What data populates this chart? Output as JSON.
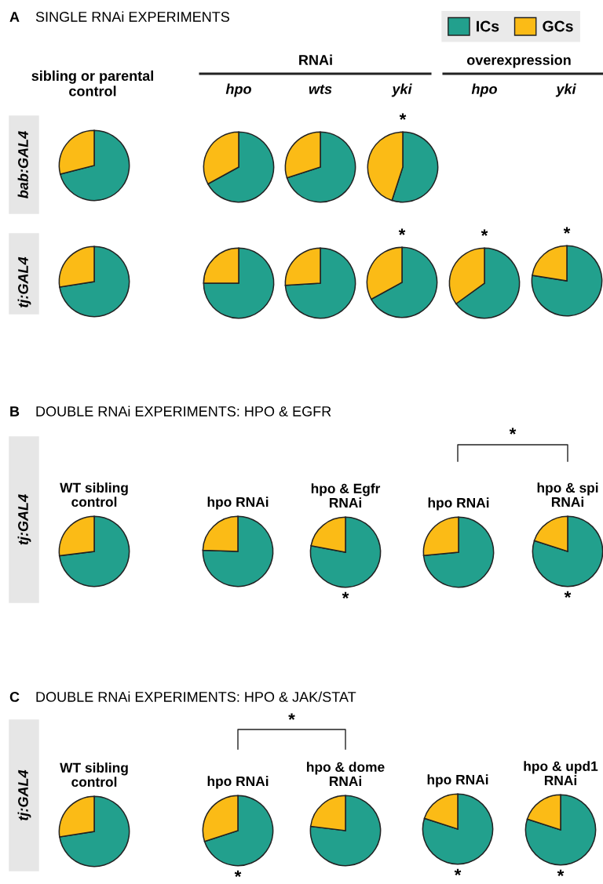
{
  "chart_data": [
    {
      "type": "other",
      "annotations": [
        "A",
        "SINGLE RNAi EXPERIMENTS"
      ]
    },
    {
      "type": "other",
      "annotations": [
        "RNAi",
        "overexpression"
      ]
    },
    {
      "type": "other",
      "annotations": [
        "sibling or parental\ncontrol"
      ]
    },
    {
      "type": "other",
      "annotations": [
        "hpo",
        "wts",
        "yki",
        "hpo",
        "yki"
      ]
    },
    {
      "type": "other",
      "annotations": [
        "bab:GAL4"
      ]
    },
    {
      "type": "pie",
      "categories": [
        "ICs",
        "GCs"
      ],
      "values": [
        71,
        29
      ],
      "colors": [
        "#22a08d",
        "#fbbb16"
      ],
      "legend": "top right"
    },
    {
      "type": "pie",
      "values": [
        67,
        33
      ],
      "colors": [
        "#22a08d",
        "#fbbb16"
      ]
    },
    {
      "type": "pie",
      "values": [
        70,
        30
      ],
      "colors": [
        "#22a08d",
        "#fbbb16"
      ]
    },
    {
      "type": "pie",
      "values": [
        55,
        45
      ],
      "colors": [
        "#22a08d",
        "#fbbb16"
      ],
      "annotations": [
        "*"
      ]
    },
    {
      "type": "other",
      "annotations": [
        "tj:GAL4"
      ]
    },
    {
      "type": "pie",
      "values": [
        72.5,
        27.5
      ],
      "colors": [
        "#22a08d",
        "#fbbb16"
      ]
    },
    {
      "type": "pie",
      "values": [
        75,
        25
      ],
      "colors": [
        "#22a08d",
        "#fbbb16"
      ]
    },
    {
      "type": "pie",
      "values": [
        74,
        26
      ],
      "colors": [
        "#22a08d",
        "#fbbb16"
      ]
    },
    {
      "type": "pie",
      "values": [
        67,
        33
      ],
      "colors": [
        "#22a08d",
        "#fbbb16"
      ],
      "annotations": [
        "*"
      ]
    },
    {
      "type": "pie",
      "values": [
        65,
        35
      ],
      "colors": [
        "#22a08d",
        "#fbbb16"
      ],
      "annotations": [
        "*"
      ]
    },
    {
      "type": "pie",
      "values": [
        77.5,
        22.5
      ],
      "colors": [
        "#22a08d",
        "#fbbb16"
      ],
      "annotations": [
        "*"
      ]
    },
    {
      "type": "other",
      "annotations": [
        "B",
        "DOUBLE RNAi EXPERIMENTS: HPO & EGFR"
      ]
    },
    {
      "type": "other",
      "annotations": [
        "tj:GAL4"
      ]
    },
    {
      "type": "other",
      "annotations": [
        "*"
      ]
    },
    {
      "type": "pie",
      "title": "WT sibling\ncontrol",
      "values": [
        73,
        27
      ],
      "colors": [
        "#22a08d",
        "#fbbb16"
      ]
    },
    {
      "type": "pie",
      "title": "hpo RNAi",
      "values": [
        75.5,
        24.5
      ],
      "colors": [
        "#22a08d",
        "#fbbb16"
      ]
    },
    {
      "type": "pie",
      "title": "hpo & Egfr\nRNAi",
      "values": [
        78,
        22
      ],
      "colors": [
        "#22a08d",
        "#fbbb16"
      ],
      "annotations": [
        "*"
      ]
    },
    {
      "type": "pie",
      "title": "hpo RNAi",
      "values": [
        73.5,
        26.5
      ],
      "colors": [
        "#22a08d",
        "#fbbb16"
      ]
    },
    {
      "type": "pie",
      "title": "hpo & spi\nRNAi",
      "values": [
        80,
        20
      ],
      "colors": [
        "#22a08d",
        "#fbbb16"
      ],
      "annotations": [
        "*"
      ]
    },
    {
      "type": "other",
      "annotations": [
        "C",
        "DOUBLE RNAi EXPERIMENTS: HPO & JAK/STAT"
      ]
    },
    {
      "type": "other",
      "annotations": [
        "tj:GAL4"
      ]
    },
    {
      "type": "other",
      "annotations": [
        "*"
      ]
    },
    {
      "type": "pie",
      "title": "WT sibling\ncontrol",
      "values": [
        72.5,
        27.5
      ],
      "colors": [
        "#22a08d",
        "#fbbb16"
      ]
    },
    {
      "type": "pie",
      "title": "hpo RNAi",
      "values": [
        70,
        30
      ],
      "colors": [
        "#22a08d",
        "#fbbb16"
      ],
      "annotations": [
        "*"
      ]
    },
    {
      "type": "pie",
      "title": "hpo & dome\nRNAi",
      "values": [
        77,
        23
      ],
      "colors": [
        "#22a08d",
        "#fbbb16"
      ]
    },
    {
      "type": "pie",
      "title": "hpo RNAi",
      "values": [
        80,
        20
      ],
      "colors": [
        "#22a08d",
        "#fbbb16"
      ],
      "annotations": [
        "*"
      ]
    },
    {
      "type": "pie",
      "title": "hpo & upd1\nRNAi",
      "values": [
        80,
        20
      ],
      "colors": [
        "#22a08d",
        "#fbbb16"
      ],
      "annotations": [
        "*"
      ]
    }
  ]
}
